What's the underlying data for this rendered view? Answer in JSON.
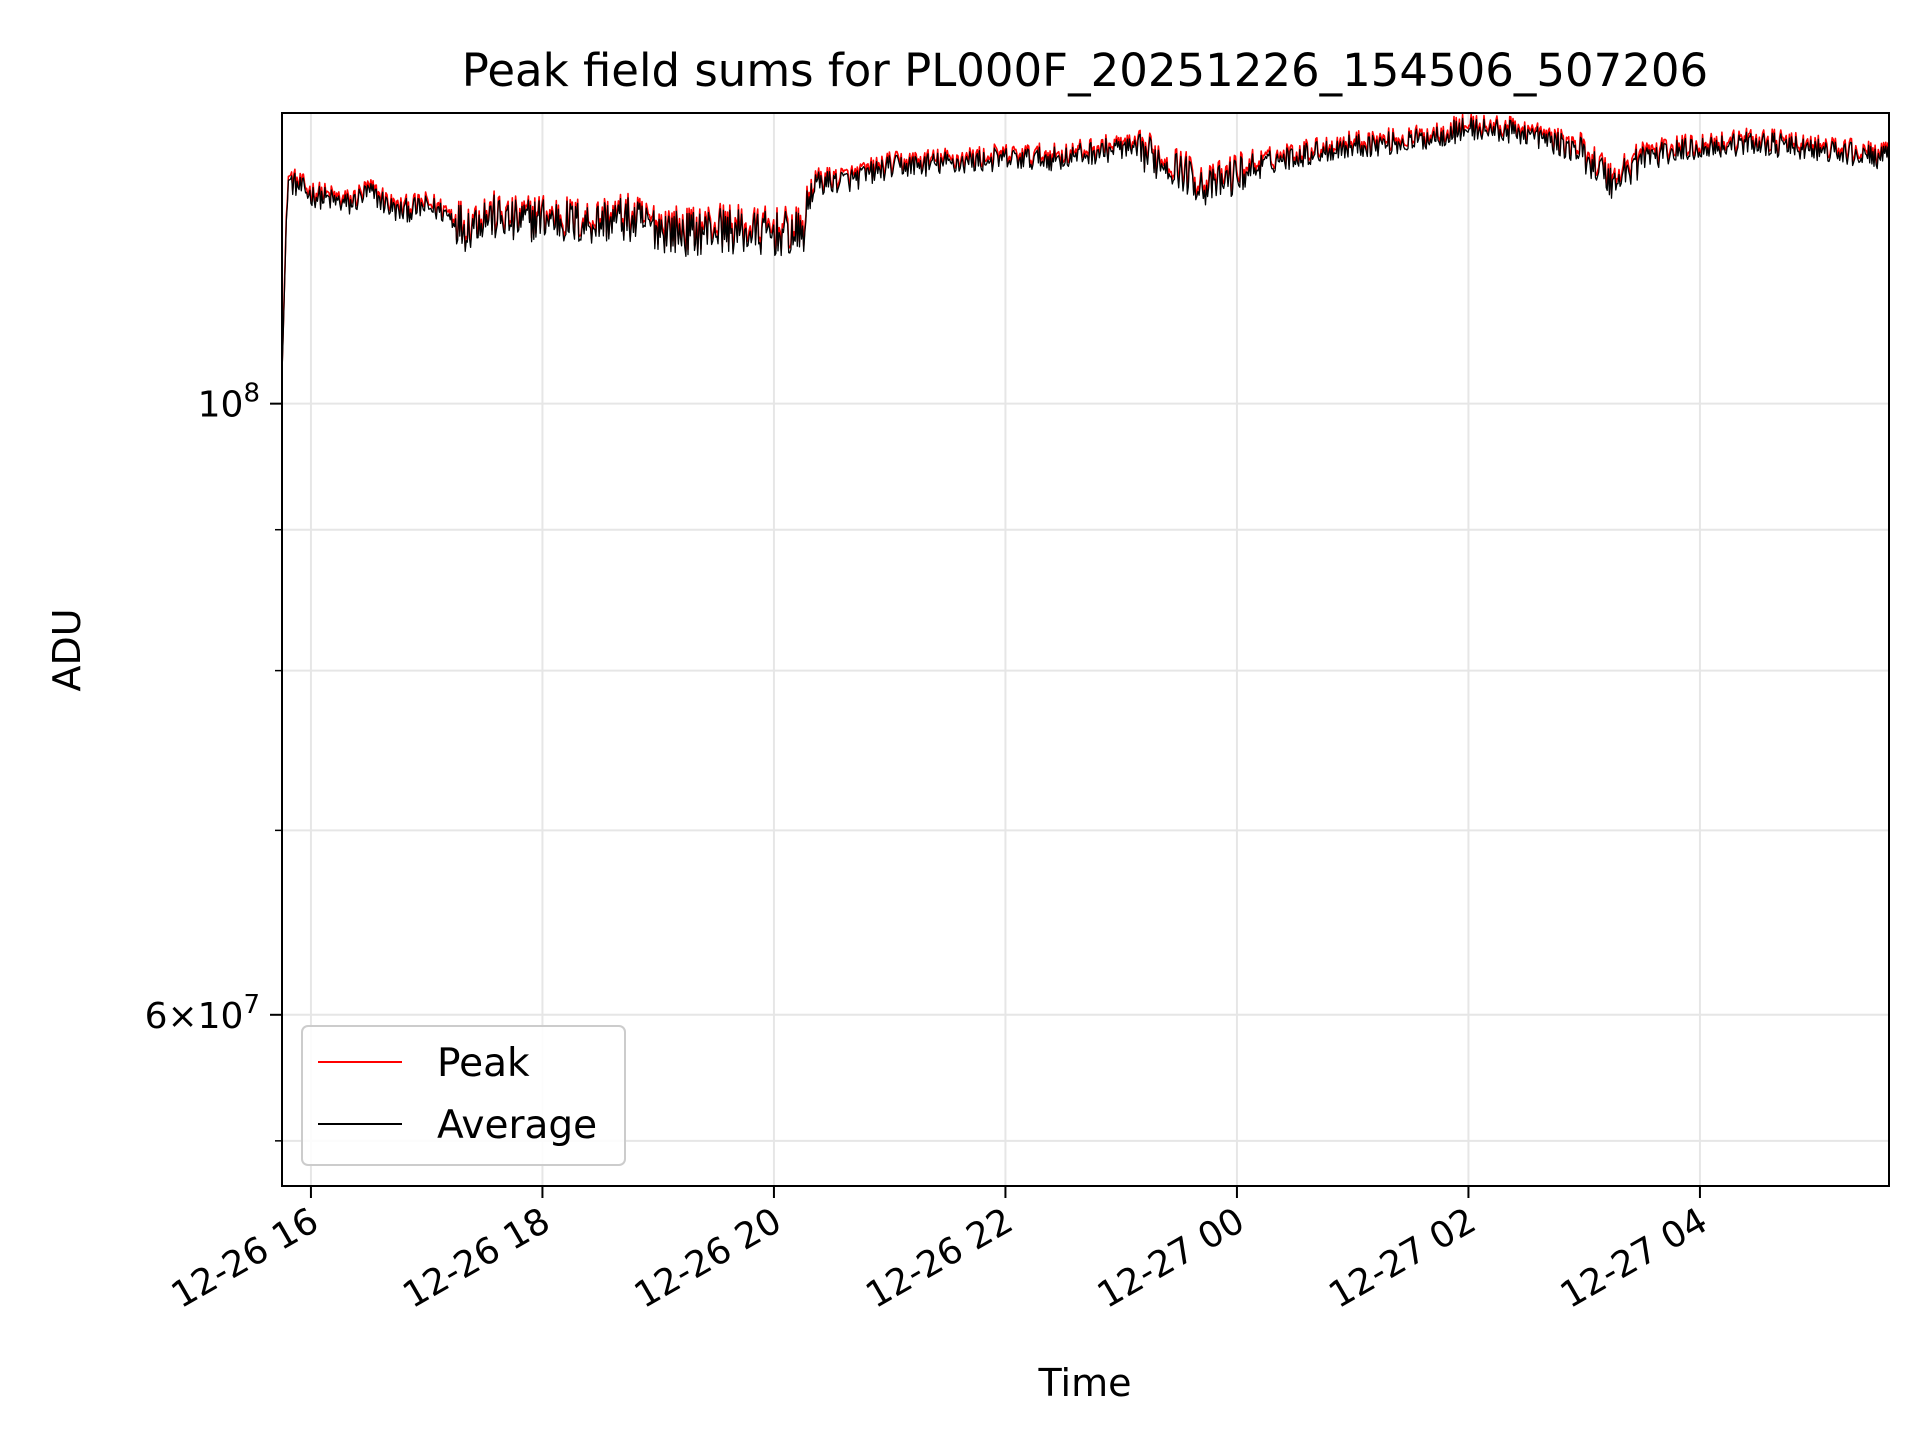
{
  "chart_data": {
    "type": "line",
    "title": "Peak field sums for PL000F_20251226_154506_507206",
    "xlabel": "Time",
    "ylabel": "ADU",
    "y_scale": "log",
    "xlim": [
      "2025-12-26 15:45",
      "2025-12-27 05:38"
    ],
    "ylim": [
      52000000,
      127500000
    ],
    "x_ticks": [
      "12-26 16",
      "12-26 18",
      "12-26 20",
      "12-26 22",
      "12-27 00",
      "12-27 02",
      "12-27 04"
    ],
    "y_ticks_major": [
      {
        "value": 100000000,
        "base": "10",
        "exp": "8",
        "coef": ""
      },
      {
        "value": 60000000,
        "base": "10",
        "exp": "7",
        "coef": "6"
      }
    ],
    "y_ticks_minor": [
      54000000,
      70000000,
      80000000,
      90000000
    ],
    "grid": true,
    "legend": "lower-left",
    "series": [
      {
        "name": "Peak",
        "color": "#ff0000",
        "x": [
          "2025-12-26 15:45",
          "2025-12-26 15:48",
          "2025-12-26 16:00",
          "2025-12-26 16:20",
          "2025-12-26 16:30",
          "2025-12-26 16:45",
          "2025-12-26 17:00",
          "2025-12-26 17:10",
          "2025-12-26 17:20",
          "2025-12-26 17:30",
          "2025-12-26 17:45",
          "2025-12-26 18:00",
          "2025-12-26 18:20",
          "2025-12-26 18:40",
          "2025-12-26 19:00",
          "2025-12-26 19:15",
          "2025-12-26 19:30",
          "2025-12-26 19:45",
          "2025-12-26 20:00",
          "2025-12-26 20:15",
          "2025-12-26 20:20",
          "2025-12-26 20:40",
          "2025-12-26 21:00",
          "2025-12-26 21:30",
          "2025-12-26 22:00",
          "2025-12-26 22:30",
          "2025-12-26 23:00",
          "2025-12-26 23:15",
          "2025-12-26 23:30",
          "2025-12-26 23:45",
          "2025-12-27 00:00",
          "2025-12-27 00:20",
          "2025-12-27 00:45",
          "2025-12-27 01:00",
          "2025-12-27 01:30",
          "2025-12-27 02:00",
          "2025-12-27 02:30",
          "2025-12-27 02:45",
          "2025-12-27 03:00",
          "2025-12-27 03:15",
          "2025-12-27 03:30",
          "2025-12-27 04:00",
          "2025-12-27 04:30",
          "2025-12-27 05:00",
          "2025-12-27 05:38"
        ],
        "values": [
          103000000,
          121000000,
          119500000,
          118500000,
          119800000,
          117800000,
          118300000,
          117700000,
          116300000,
          117500000,
          116800000,
          117300000,
          116700000,
          117200000,
          116400000,
          115800000,
          116300000,
          115900000,
          115800000,
          115700000,
          120600000,
          121000000,
          122300000,
          122700000,
          123100000,
          123200000,
          124300000,
          123500000,
          122100000,
          120200000,
          121600000,
          123000000,
          124000000,
          124500000,
          124900000,
          126300000,
          125800000,
          124800000,
          123700000,
          120800000,
          123400000,
          124300000,
          124800000,
          124000000,
          123200000
        ]
      },
      {
        "name": "Average",
        "color": "#000000",
        "x": [
          "2025-12-26 15:45",
          "2025-12-26 15:48",
          "2025-12-26 16:00",
          "2025-12-26 16:20",
          "2025-12-26 16:30",
          "2025-12-26 16:45",
          "2025-12-26 17:00",
          "2025-12-26 17:10",
          "2025-12-26 17:20",
          "2025-12-26 17:30",
          "2025-12-26 17:45",
          "2025-12-26 18:00",
          "2025-12-26 18:20",
          "2025-12-26 18:40",
          "2025-12-26 19:00",
          "2025-12-26 19:15",
          "2025-12-26 19:30",
          "2025-12-26 19:45",
          "2025-12-26 20:00",
          "2025-12-26 20:15",
          "2025-12-26 20:20",
          "2025-12-26 20:40",
          "2025-12-26 21:00",
          "2025-12-26 21:30",
          "2025-12-26 22:00",
          "2025-12-26 22:30",
          "2025-12-26 23:00",
          "2025-12-26 23:15",
          "2025-12-26 23:30",
          "2025-12-26 23:45",
          "2025-12-27 00:00",
          "2025-12-27 00:20",
          "2025-12-27 00:45",
          "2025-12-27 01:00",
          "2025-12-27 01:30",
          "2025-12-27 02:00",
          "2025-12-27 02:30",
          "2025-12-27 02:45",
          "2025-12-27 03:00",
          "2025-12-27 03:15",
          "2025-12-27 03:30",
          "2025-12-27 04:00",
          "2025-12-27 04:30",
          "2025-12-27 05:00",
          "2025-12-27 05:38"
        ],
        "values": [
          102500000,
          120600000,
          119100000,
          118100000,
          119400000,
          117400000,
          117900000,
          117300000,
          115900000,
          117100000,
          116400000,
          116900000,
          116300000,
          116800000,
          115900000,
          115300000,
          115800000,
          115400000,
          115300000,
          115200000,
          120200000,
          120600000,
          121900000,
          122300000,
          122700000,
          122800000,
          123900000,
          123100000,
          121600000,
          119700000,
          121100000,
          122600000,
          123600000,
          124100000,
          124500000,
          125900000,
          125400000,
          124400000,
          123200000,
          120300000,
          122900000,
          123900000,
          124400000,
          123600000,
          122800000
        ]
      }
    ]
  }
}
